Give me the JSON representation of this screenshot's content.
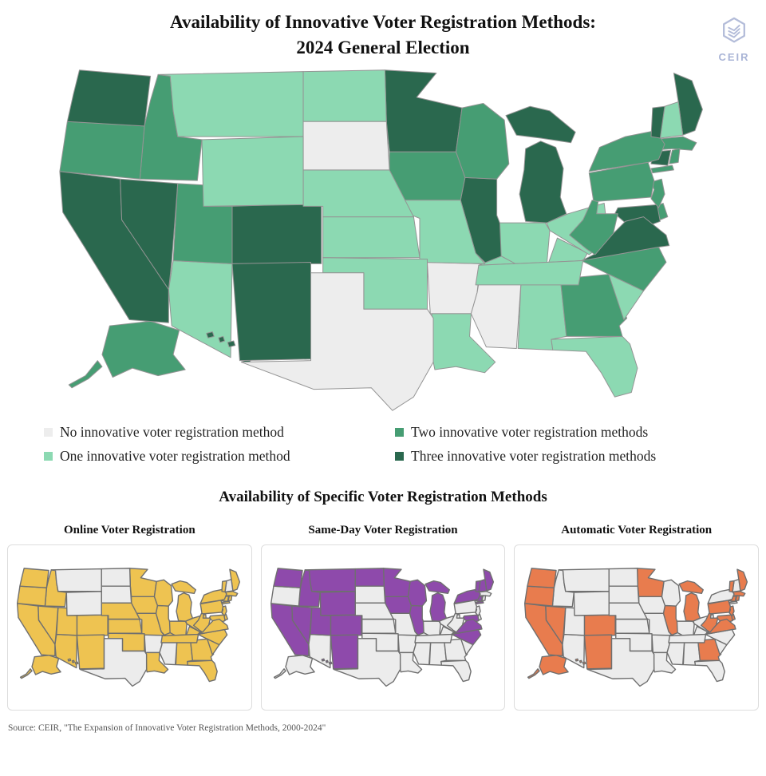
{
  "title": {
    "line1": "Availability of Innovative Voter Registration Methods:",
    "line2": "2024 General Election"
  },
  "logo": {
    "text": "CEIR",
    "color": "#a9b4d6"
  },
  "legend": {
    "items": [
      {
        "label": "No innovative voter registration method",
        "color": "#ededed"
      },
      {
        "label": "One innovative voter registration method",
        "color": "#8cd9b2"
      },
      {
        "label": "Two innovative voter registration methods",
        "color": "#469d73"
      },
      {
        "label": "Three innovative voter registration methods",
        "color": "#2a684e"
      }
    ]
  },
  "section": {
    "title": "Availability of Specific Voter Registration Methods"
  },
  "panels": [
    {
      "id": "online",
      "title": "Online Voter Registration",
      "color": "#eec351"
    },
    {
      "id": "same_day",
      "title": "Same-Day Voter Registration",
      "color": "#8e4aab"
    },
    {
      "id": "automatic",
      "title": "Automatic Voter Registration",
      "color": "#e87c4e"
    }
  ],
  "source": "Source: CEIR, \"The Expansion of Innovative Voter Registration Methods, 2000-2024\"",
  "chart_data": {
    "type": "choropleth",
    "title": "Availability of Innovative Voter Registration Methods: 2024 General Election",
    "main_map": {
      "classes": [
        "0 innovative methods",
        "1 innovative method",
        "2 innovative methods",
        "3 innovative methods"
      ],
      "class_colors": [
        "#ededed",
        "#8cd9b2",
        "#469d73",
        "#2a684e"
      ],
      "border_color": "#949494"
    },
    "small_maps": {
      "absent_color": "#ececec",
      "border_color": "#6f6f6f"
    },
    "states": [
      {
        "abbr": "AL",
        "name": "Alabama",
        "methods": 1,
        "online": true,
        "same_day": false,
        "automatic": false
      },
      {
        "abbr": "AK",
        "name": "Alaska",
        "methods": 2,
        "online": true,
        "same_day": false,
        "automatic": true
      },
      {
        "abbr": "AZ",
        "name": "Arizona",
        "methods": 1,
        "online": true,
        "same_day": false,
        "automatic": false
      },
      {
        "abbr": "AR",
        "name": "Arkansas",
        "methods": 0,
        "online": false,
        "same_day": false,
        "automatic": false
      },
      {
        "abbr": "CA",
        "name": "California",
        "methods": 3,
        "online": true,
        "same_day": true,
        "automatic": true
      },
      {
        "abbr": "CO",
        "name": "Colorado",
        "methods": 3,
        "online": true,
        "same_day": true,
        "automatic": true
      },
      {
        "abbr": "CT",
        "name": "Connecticut",
        "methods": 3,
        "online": true,
        "same_day": true,
        "automatic": true
      },
      {
        "abbr": "DE",
        "name": "Delaware",
        "methods": 2,
        "online": true,
        "same_day": false,
        "automatic": true
      },
      {
        "abbr": "DC",
        "name": "District of Columbia",
        "methods": 3,
        "online": true,
        "same_day": true,
        "automatic": true
      },
      {
        "abbr": "FL",
        "name": "Florida",
        "methods": 1,
        "online": true,
        "same_day": false,
        "automatic": false
      },
      {
        "abbr": "GA",
        "name": "Georgia",
        "methods": 2,
        "online": true,
        "same_day": false,
        "automatic": true
      },
      {
        "abbr": "HI",
        "name": "Hawaii",
        "methods": 3,
        "online": true,
        "same_day": true,
        "automatic": true
      },
      {
        "abbr": "ID",
        "name": "Idaho",
        "methods": 2,
        "online": true,
        "same_day": true,
        "automatic": false
      },
      {
        "abbr": "IL",
        "name": "Illinois",
        "methods": 3,
        "online": true,
        "same_day": true,
        "automatic": true
      },
      {
        "abbr": "IN",
        "name": "Indiana",
        "methods": 1,
        "online": true,
        "same_day": false,
        "automatic": false
      },
      {
        "abbr": "IA",
        "name": "Iowa",
        "methods": 2,
        "online": true,
        "same_day": true,
        "automatic": false
      },
      {
        "abbr": "KS",
        "name": "Kansas",
        "methods": 1,
        "online": true,
        "same_day": false,
        "automatic": false
      },
      {
        "abbr": "KY",
        "name": "Kentucky",
        "methods": 1,
        "online": true,
        "same_day": false,
        "automatic": false
      },
      {
        "abbr": "LA",
        "name": "Louisiana",
        "methods": 1,
        "online": true,
        "same_day": false,
        "automatic": false
      },
      {
        "abbr": "ME",
        "name": "Maine",
        "methods": 3,
        "online": true,
        "same_day": true,
        "automatic": true
      },
      {
        "abbr": "MD",
        "name": "Maryland",
        "methods": 3,
        "online": true,
        "same_day": true,
        "automatic": true
      },
      {
        "abbr": "MA",
        "name": "Massachusetts",
        "methods": 2,
        "online": true,
        "same_day": false,
        "automatic": true
      },
      {
        "abbr": "MI",
        "name": "Michigan",
        "methods": 3,
        "online": true,
        "same_day": true,
        "automatic": true
      },
      {
        "abbr": "MN",
        "name": "Minnesota",
        "methods": 3,
        "online": true,
        "same_day": true,
        "automatic": true
      },
      {
        "abbr": "MS",
        "name": "Mississippi",
        "methods": 0,
        "online": false,
        "same_day": false,
        "automatic": false
      },
      {
        "abbr": "MO",
        "name": "Missouri",
        "methods": 1,
        "online": true,
        "same_day": false,
        "automatic": false
      },
      {
        "abbr": "MT",
        "name": "Montana",
        "methods": 1,
        "online": false,
        "same_day": true,
        "automatic": false
      },
      {
        "abbr": "NE",
        "name": "Nebraska",
        "methods": 1,
        "online": true,
        "same_day": false,
        "automatic": false
      },
      {
        "abbr": "NV",
        "name": "Nevada",
        "methods": 3,
        "online": true,
        "same_day": true,
        "automatic": true
      },
      {
        "abbr": "NH",
        "name": "New Hampshire",
        "methods": 1,
        "online": false,
        "same_day": true,
        "automatic": false
      },
      {
        "abbr": "NJ",
        "name": "New Jersey",
        "methods": 2,
        "online": true,
        "same_day": false,
        "automatic": true
      },
      {
        "abbr": "NM",
        "name": "New Mexico",
        "methods": 3,
        "online": true,
        "same_day": true,
        "automatic": true
      },
      {
        "abbr": "NY",
        "name": "New York",
        "methods": 2,
        "online": true,
        "same_day": true,
        "automatic": false
      },
      {
        "abbr": "NC",
        "name": "North Carolina",
        "methods": 2,
        "online": true,
        "same_day": true,
        "automatic": false
      },
      {
        "abbr": "ND",
        "name": "North Dakota",
        "methods": 1,
        "online": false,
        "same_day": true,
        "automatic": false
      },
      {
        "abbr": "OH",
        "name": "Ohio",
        "methods": 1,
        "online": true,
        "same_day": false,
        "automatic": false
      },
      {
        "abbr": "OK",
        "name": "Oklahoma",
        "methods": 1,
        "online": true,
        "same_day": false,
        "automatic": false
      },
      {
        "abbr": "OR",
        "name": "Oregon",
        "methods": 2,
        "online": true,
        "same_day": false,
        "automatic": true
      },
      {
        "abbr": "PA",
        "name": "Pennsylvania",
        "methods": 2,
        "online": true,
        "same_day": false,
        "automatic": true
      },
      {
        "abbr": "RI",
        "name": "Rhode Island",
        "methods": 2,
        "online": true,
        "same_day": false,
        "automatic": true
      },
      {
        "abbr": "SC",
        "name": "South Carolina",
        "methods": 1,
        "online": true,
        "same_day": false,
        "automatic": false
      },
      {
        "abbr": "SD",
        "name": "South Dakota",
        "methods": 0,
        "online": false,
        "same_day": false,
        "automatic": false
      },
      {
        "abbr": "TN",
        "name": "Tennessee",
        "methods": 1,
        "online": true,
        "same_day": false,
        "automatic": false
      },
      {
        "abbr": "TX",
        "name": "Texas",
        "methods": 0,
        "online": false,
        "same_day": false,
        "automatic": false
      },
      {
        "abbr": "UT",
        "name": "Utah",
        "methods": 2,
        "online": true,
        "same_day": true,
        "automatic": false
      },
      {
        "abbr": "VT",
        "name": "Vermont",
        "methods": 3,
        "online": true,
        "same_day": true,
        "automatic": true
      },
      {
        "abbr": "VA",
        "name": "Virginia",
        "methods": 3,
        "online": true,
        "same_day": true,
        "automatic": true
      },
      {
        "abbr": "WA",
        "name": "Washington",
        "methods": 3,
        "online": true,
        "same_day": true,
        "automatic": true
      },
      {
        "abbr": "WV",
        "name": "West Virginia",
        "methods": 2,
        "online": true,
        "same_day": false,
        "automatic": true
      },
      {
        "abbr": "WI",
        "name": "Wisconsin",
        "methods": 2,
        "online": true,
        "same_day": true,
        "automatic": false
      },
      {
        "abbr": "WY",
        "name": "Wyoming",
        "methods": 1,
        "online": false,
        "same_day": true,
        "automatic": false
      }
    ]
  }
}
